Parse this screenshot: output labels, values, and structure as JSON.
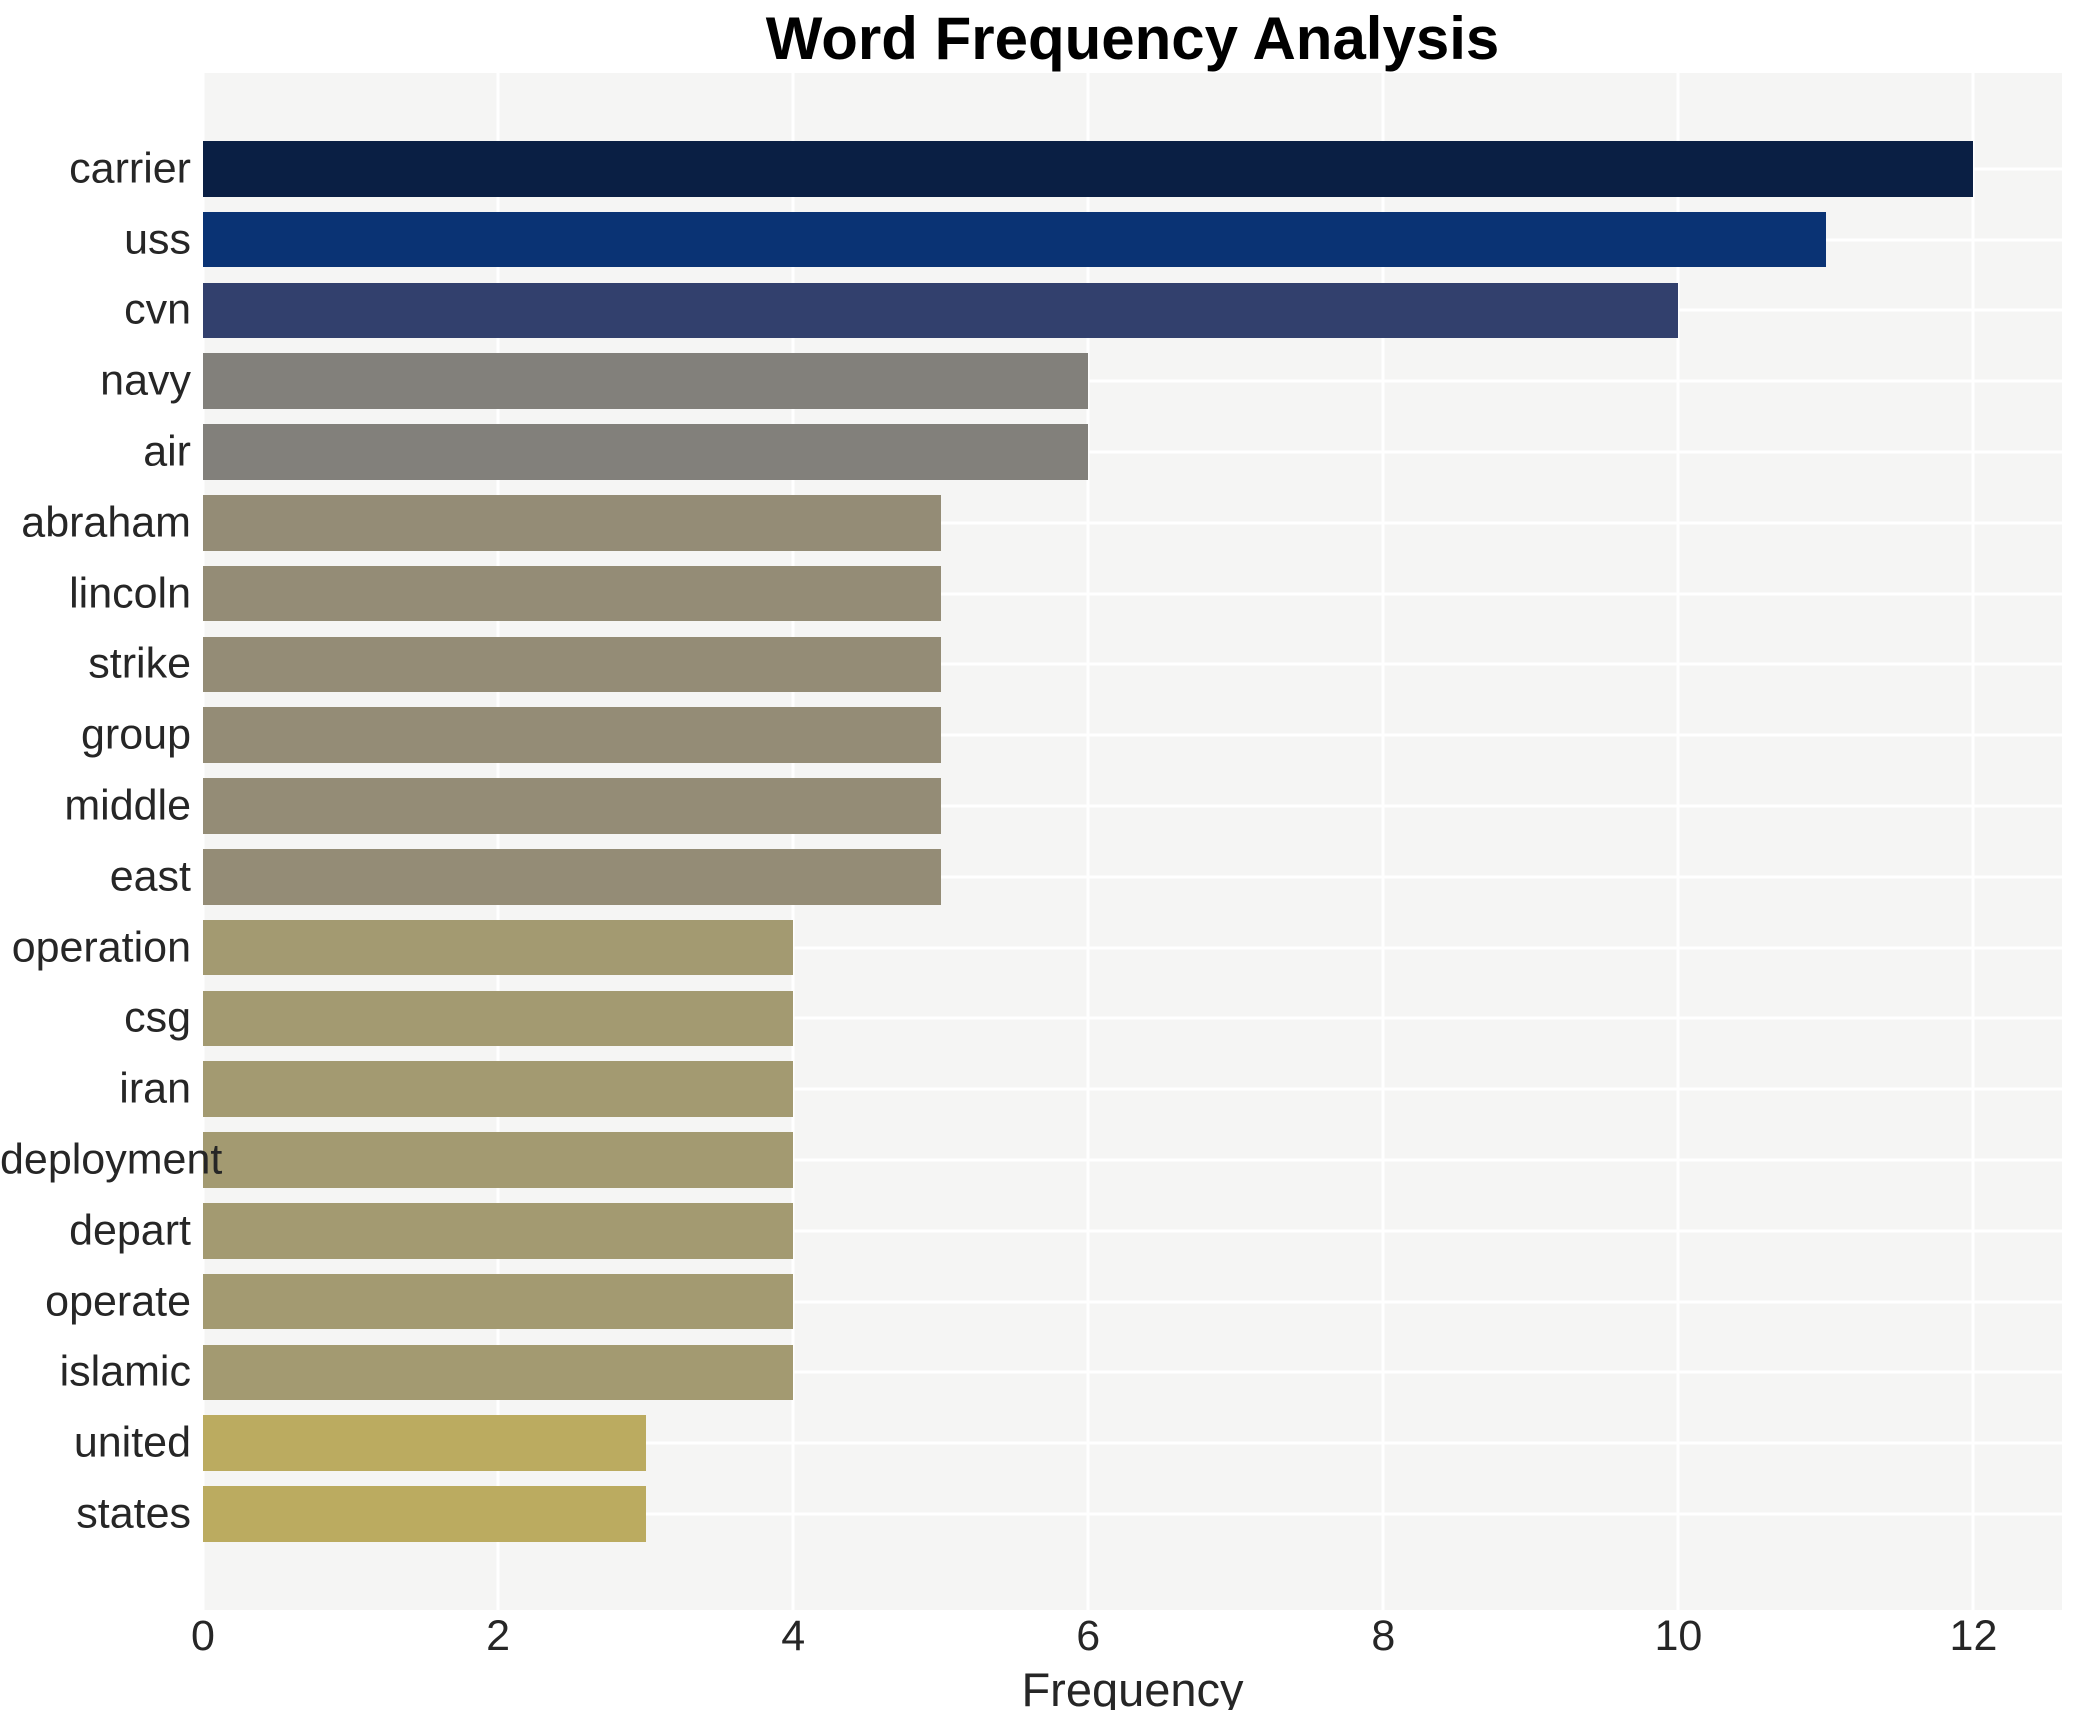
{
  "title": "Word Frequency Analysis",
  "chart_data": {
    "type": "bar",
    "orientation": "horizontal",
    "title": "Word Frequency Analysis",
    "xlabel": "Frequency",
    "ylabel": "",
    "categories": [
      "carrier",
      "uss",
      "cvn",
      "navy",
      "air",
      "abraham",
      "lincoln",
      "strike",
      "group",
      "middle",
      "east",
      "operation",
      "csg",
      "iran",
      "deployment",
      "depart",
      "operate",
      "islamic",
      "united",
      "states"
    ],
    "values": [
      12,
      11,
      10,
      6,
      6,
      5,
      5,
      5,
      5,
      5,
      5,
      4,
      4,
      4,
      4,
      4,
      4,
      4,
      3,
      3
    ],
    "bar_colors": [
      "#0a1f44",
      "#0a3374",
      "#32406d",
      "#82807b",
      "#82807b",
      "#948c76",
      "#948c76",
      "#948c76",
      "#948c76",
      "#948c76",
      "#948c76",
      "#a39a71",
      "#a39a71",
      "#a39a71",
      "#a39a71",
      "#a39a71",
      "#a39a71",
      "#a39a71",
      "#bbab60",
      "#bbab60"
    ],
    "xlim": [
      0,
      12.6
    ],
    "xticks": [
      0,
      2,
      4,
      6,
      8,
      10,
      12
    ],
    "grid": true,
    "legend": "none",
    "plot_bg": "#f5f5f4",
    "grid_color": "#ffffff",
    "text_color": "#262626"
  }
}
